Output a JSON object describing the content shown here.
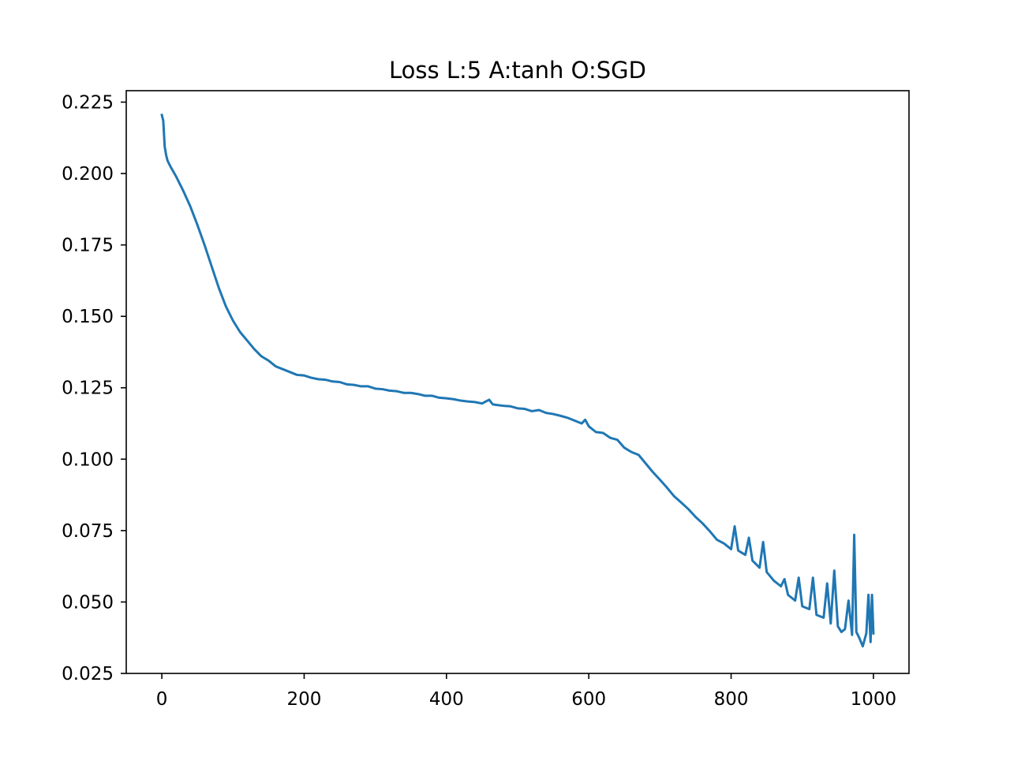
{
  "chart_data": {
    "type": "line",
    "title": "Loss L:5 A:tanh O:SGD",
    "xlabel": "",
    "ylabel": "",
    "xlim": [
      -50,
      1050
    ],
    "ylim": [
      0.025,
      0.229
    ],
    "grid": false,
    "x_ticks": [
      0,
      200,
      400,
      600,
      800,
      1000
    ],
    "x_tick_labels": [
      "0",
      "200",
      "400",
      "600",
      "800",
      "1000"
    ],
    "y_ticks": [
      0.025,
      0.05,
      0.075,
      0.1,
      0.125,
      0.15,
      0.175,
      0.2,
      0.225
    ],
    "y_tick_labels": [
      "0.025",
      "0.050",
      "0.075",
      "0.100",
      "0.125",
      "0.150",
      "0.175",
      "0.200",
      "0.225"
    ],
    "series": [
      {
        "color": "#1f77b4",
        "points": [
          [
            0,
            0.2205
          ],
          [
            2,
            0.2185
          ],
          [
            4,
            0.2095
          ],
          [
            6,
            0.2065
          ],
          [
            8,
            0.2045
          ],
          [
            12,
            0.2025
          ],
          [
            20,
            0.199
          ],
          [
            30,
            0.194
          ],
          [
            40,
            0.1885
          ],
          [
            50,
            0.182
          ],
          [
            60,
            0.175
          ],
          [
            70,
            0.1675
          ],
          [
            80,
            0.16
          ],
          [
            90,
            0.1535
          ],
          [
            100,
            0.1485
          ],
          [
            110,
            0.1445
          ],
          [
            120,
            0.1415
          ],
          [
            130,
            0.1385
          ],
          [
            140,
            0.136
          ],
          [
            150,
            0.1345
          ],
          [
            160,
            0.1325
          ],
          [
            170,
            0.1315
          ],
          [
            180,
            0.1305
          ],
          [
            190,
            0.1295
          ],
          [
            200,
            0.1293
          ],
          [
            210,
            0.1285
          ],
          [
            220,
            0.128
          ],
          [
            230,
            0.1278
          ],
          [
            240,
            0.1272
          ],
          [
            250,
            0.127
          ],
          [
            260,
            0.1262
          ],
          [
            270,
            0.126
          ],
          [
            280,
            0.1255
          ],
          [
            290,
            0.1255
          ],
          [
            300,
            0.1247
          ],
          [
            310,
            0.1245
          ],
          [
            320,
            0.124
          ],
          [
            330,
            0.1238
          ],
          [
            340,
            0.1232
          ],
          [
            350,
            0.1232
          ],
          [
            360,
            0.1228
          ],
          [
            370,
            0.1222
          ],
          [
            380,
            0.1222
          ],
          [
            390,
            0.1215
          ],
          [
            400,
            0.1213
          ],
          [
            410,
            0.121
          ],
          [
            420,
            0.1205
          ],
          [
            430,
            0.1202
          ],
          [
            440,
            0.12
          ],
          [
            450,
            0.1195
          ],
          [
            460,
            0.1208
          ],
          [
            465,
            0.1192
          ],
          [
            470,
            0.119
          ],
          [
            480,
            0.1187
          ],
          [
            490,
            0.1185
          ],
          [
            500,
            0.1178
          ],
          [
            510,
            0.1176
          ],
          [
            520,
            0.1168
          ],
          [
            530,
            0.1172
          ],
          [
            540,
            0.1162
          ],
          [
            550,
            0.1158
          ],
          [
            560,
            0.1152
          ],
          [
            570,
            0.1145
          ],
          [
            580,
            0.1135
          ],
          [
            590,
            0.1125
          ],
          [
            595,
            0.1138
          ],
          [
            600,
            0.1115
          ],
          [
            610,
            0.1095
          ],
          [
            620,
            0.1092
          ],
          [
            630,
            0.1075
          ],
          [
            640,
            0.1068
          ],
          [
            650,
            0.104
          ],
          [
            660,
            0.1025
          ],
          [
            670,
            0.1015
          ],
          [
            680,
            0.0985
          ],
          [
            690,
            0.0955
          ],
          [
            700,
            0.0928
          ],
          [
            710,
            0.09
          ],
          [
            720,
            0.087
          ],
          [
            730,
            0.0848
          ],
          [
            740,
            0.0825
          ],
          [
            750,
            0.0798
          ],
          [
            760,
            0.0775
          ],
          [
            770,
            0.0748
          ],
          [
            780,
            0.0718
          ],
          [
            790,
            0.0705
          ],
          [
            800,
            0.0685
          ],
          [
            805,
            0.0765
          ],
          [
            810,
            0.068
          ],
          [
            820,
            0.0665
          ],
          [
            825,
            0.0725
          ],
          [
            830,
            0.0645
          ],
          [
            840,
            0.062
          ],
          [
            845,
            0.071
          ],
          [
            850,
            0.0605
          ],
          [
            860,
            0.0575
          ],
          [
            865,
            0.0565
          ],
          [
            870,
            0.0555
          ],
          [
            875,
            0.058
          ],
          [
            880,
            0.0525
          ],
          [
            890,
            0.0505
          ],
          [
            895,
            0.0585
          ],
          [
            900,
            0.0485
          ],
          [
            910,
            0.0475
          ],
          [
            915,
            0.0585
          ],
          [
            920,
            0.0455
          ],
          [
            930,
            0.0445
          ],
          [
            935,
            0.0565
          ],
          [
            940,
            0.0425
          ],
          [
            945,
            0.061
          ],
          [
            950,
            0.0415
          ],
          [
            955,
            0.0395
          ],
          [
            960,
            0.0405
          ],
          [
            965,
            0.0505
          ],
          [
            970,
            0.0385
          ],
          [
            973,
            0.0735
          ],
          [
            976,
            0.0395
          ],
          [
            980,
            0.0375
          ],
          [
            985,
            0.0345
          ],
          [
            990,
            0.039
          ],
          [
            993,
            0.0525
          ],
          [
            996,
            0.036
          ],
          [
            998,
            0.0525
          ],
          [
            1000,
            0.039
          ]
        ]
      }
    ]
  }
}
